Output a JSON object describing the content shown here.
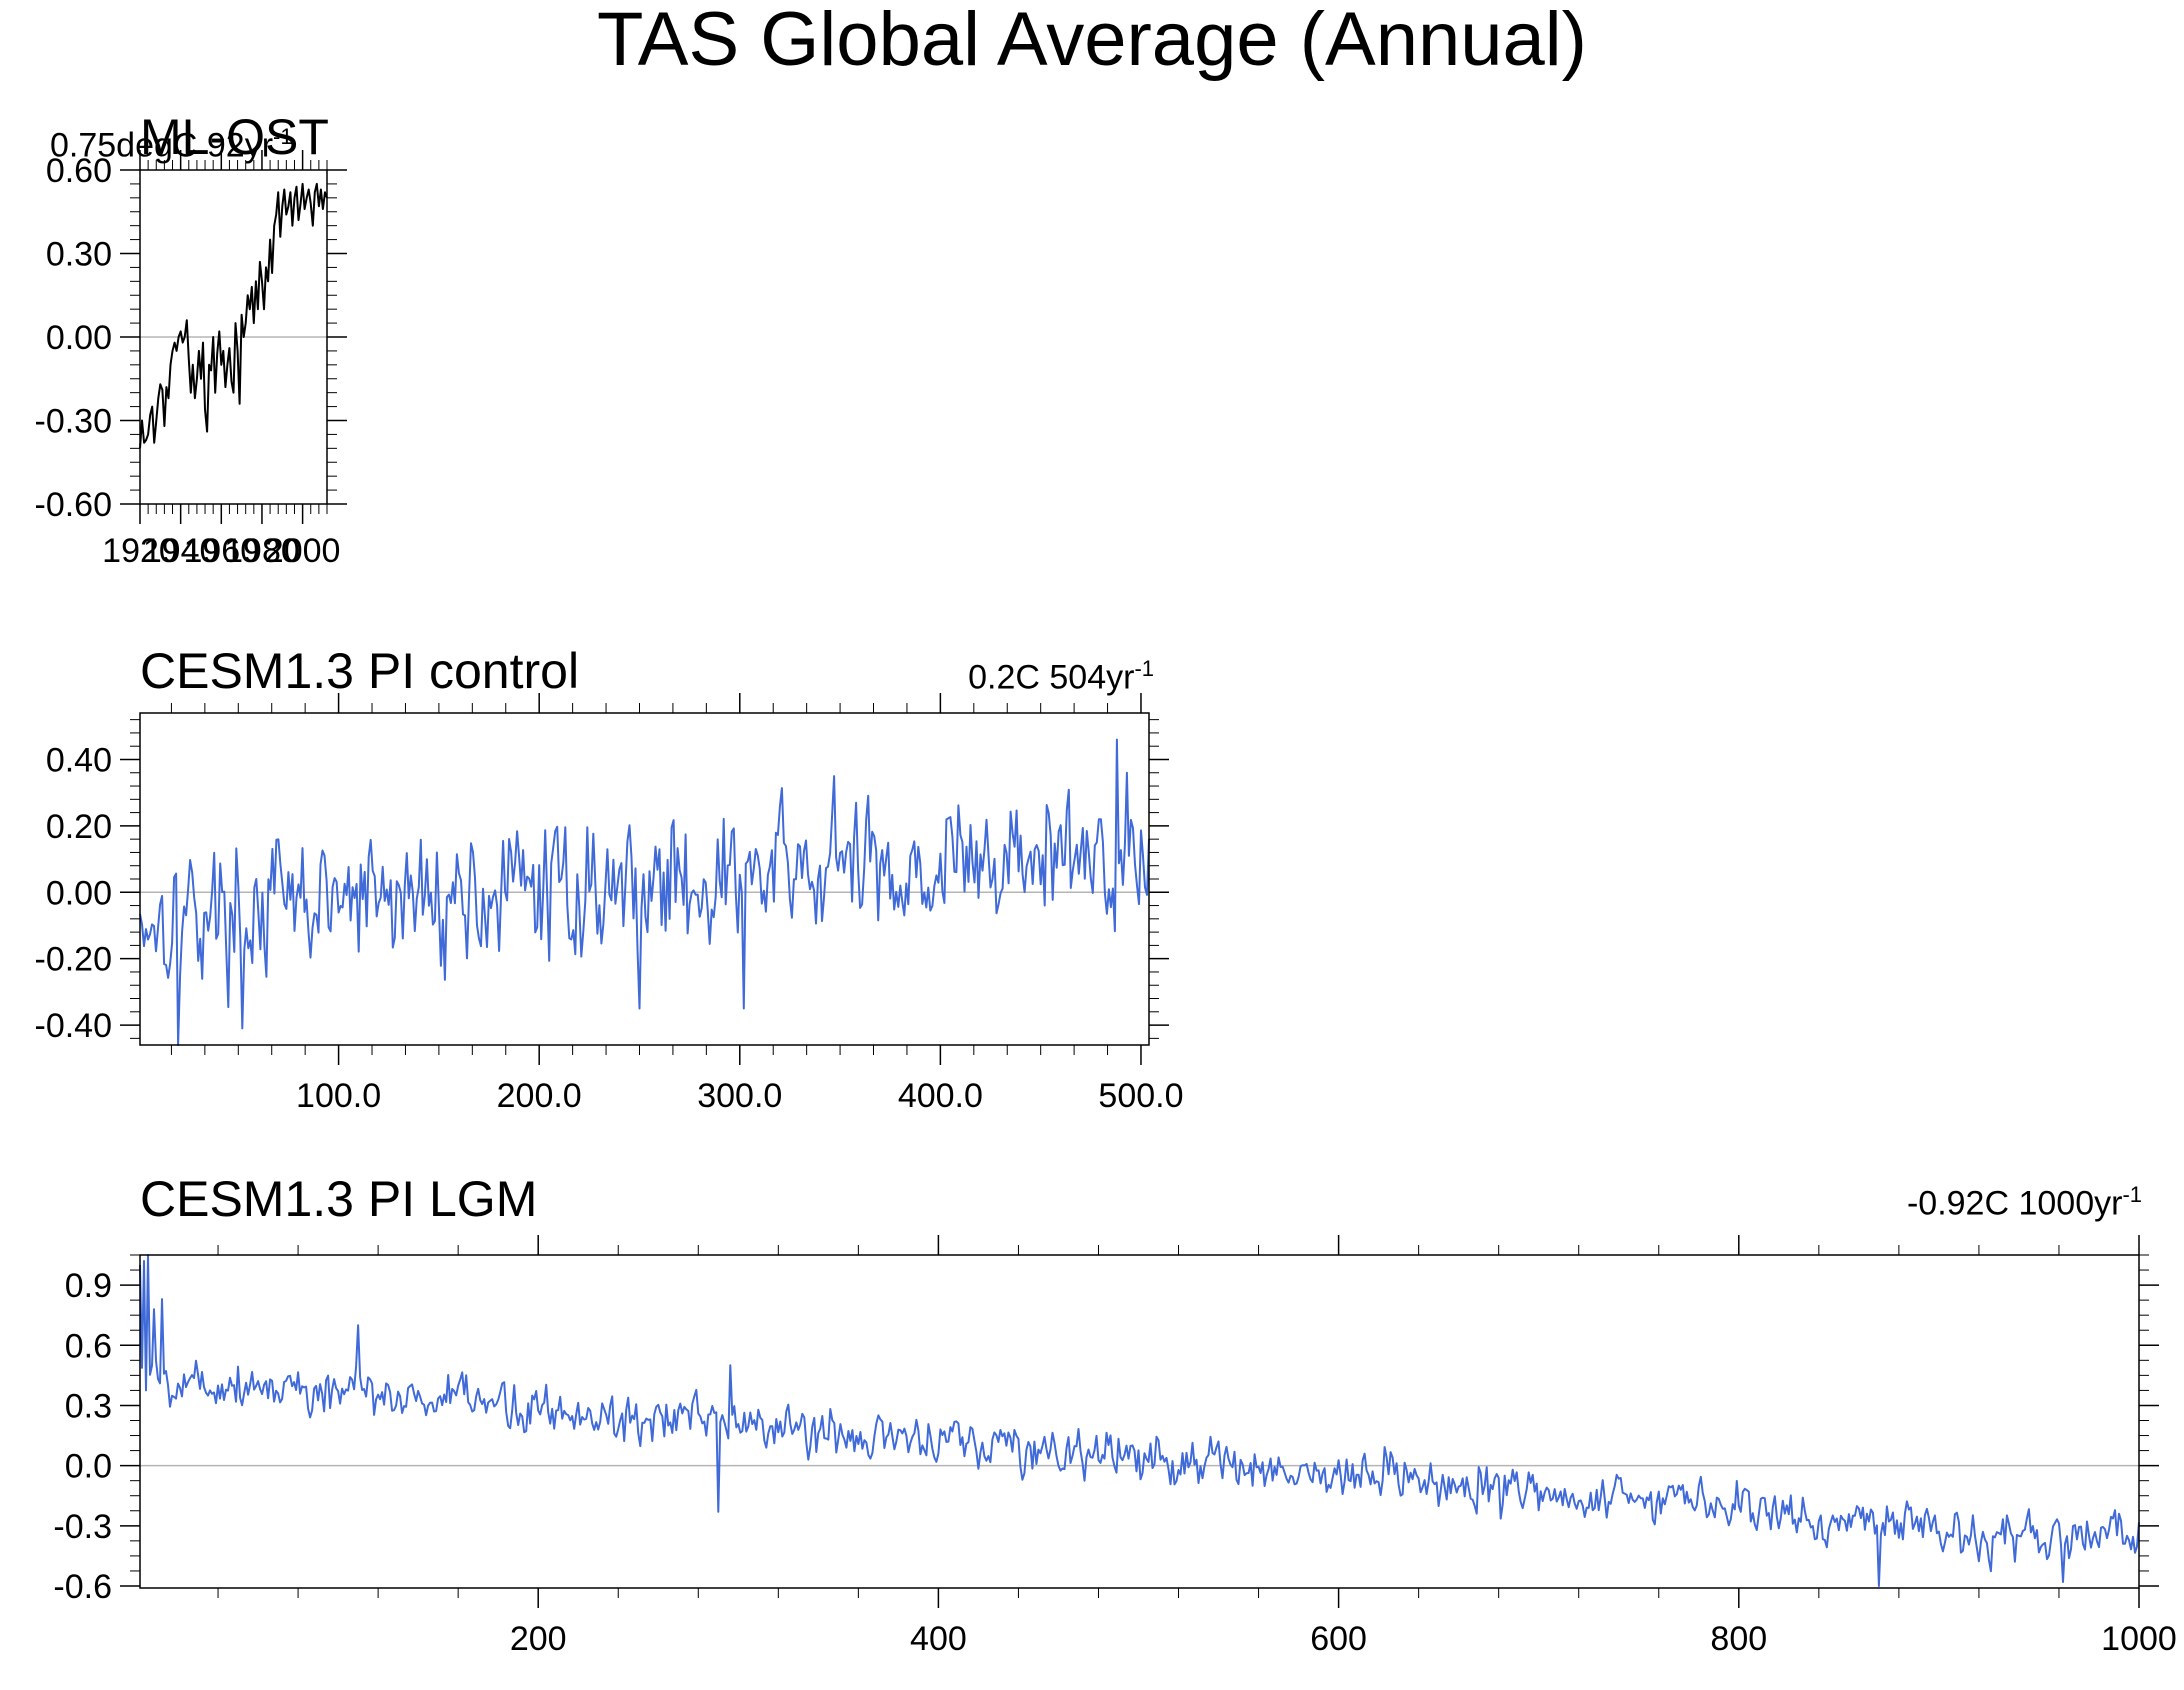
{
  "page": {
    "title": "TAS Global Average (Annual)"
  },
  "chart_data": [
    {
      "type": "line",
      "title": "ML-OST",
      "trend_value": "0.75degC 92yr",
      "trend_exp": "-1",
      "color": "#000000",
      "xlim": [
        1920,
        2012
      ],
      "ylim": [
        -0.6,
        0.6
      ],
      "x_ticks": [
        1920,
        1940,
        1960,
        1980,
        2000
      ],
      "x_tick_labels": [
        "1920",
        "1940",
        "1960",
        "1980",
        "2000"
      ],
      "x_minor": 4,
      "y_ticks": [
        -0.6,
        -0.3,
        0.0,
        0.3,
        0.6
      ],
      "y_tick_labels": [
        "-0.60",
        "-0.30",
        "0.00",
        "0.30",
        "0.60"
      ],
      "y_minor": 5,
      "x_start": 1920,
      "x_step": 1,
      "values": [
        -0.4,
        -0.3,
        -0.38,
        -0.37,
        -0.35,
        -0.28,
        -0.25,
        -0.38,
        -0.3,
        -0.22,
        -0.17,
        -0.19,
        -0.32,
        -0.18,
        -0.22,
        -0.1,
        -0.05,
        -0.02,
        -0.05,
        0.0,
        0.02,
        -0.02,
        0.0,
        0.06,
        -0.08,
        -0.2,
        -0.1,
        -0.22,
        -0.15,
        -0.05,
        -0.15,
        -0.02,
        -0.26,
        -0.34,
        -0.1,
        -0.12,
        0.0,
        -0.2,
        -0.06,
        0.02,
        -0.1,
        -0.05,
        -0.18,
        -0.1,
        -0.04,
        -0.16,
        -0.2,
        0.05,
        -0.05,
        -0.24,
        0.08,
        0.0,
        0.05,
        0.15,
        0.1,
        0.18,
        0.05,
        0.2,
        0.1,
        0.27,
        0.2,
        0.1,
        0.25,
        0.2,
        0.35,
        0.23,
        0.4,
        0.44,
        0.52,
        0.36,
        0.47,
        0.53,
        0.44,
        0.47,
        0.52,
        0.4,
        0.5,
        0.54,
        0.42,
        0.48,
        0.55,
        0.46,
        0.5,
        0.53,
        0.48,
        0.4,
        0.52,
        0.55,
        0.47,
        0.53,
        0.46,
        0.52,
        0.5
      ]
    },
    {
      "type": "line",
      "title": "CESM1.3 PI control",
      "trend_value": "0.2C 504yr",
      "trend_exp": "-1",
      "color": "#3f6ad8",
      "xlim": [
        1,
        504
      ],
      "ylim": [
        -0.46,
        0.54
      ],
      "x_ticks": [
        100,
        200,
        300,
        400,
        500
      ],
      "x_tick_labels": [
        "100.0",
        "200.0",
        "300.0",
        "400.0",
        "500.0"
      ],
      "x_minor": 5,
      "y_ticks": [
        -0.4,
        -0.2,
        0.0,
        0.2,
        0.4
      ],
      "y_tick_labels": [
        "-0.40",
        "-0.20",
        "0.00",
        "0.20",
        "0.40"
      ],
      "y_minor": 4,
      "gen": {
        "n": 504,
        "trend_start": -0.07,
        "trend_end": 0.12,
        "amp": 0.14,
        "seed": 17,
        "peaks": [
          [
            20,
            -0.46
          ],
          [
            52,
            -0.41
          ],
          [
            250,
            -0.35
          ],
          [
            302,
            -0.35
          ],
          [
            347,
            0.35
          ],
          [
            488,
            0.46
          ],
          [
            493,
            0.36
          ]
        ]
      }
    },
    {
      "type": "line",
      "title": "CESM1.3 PI LGM",
      "trend_value": "-0.92C 1000yr",
      "trend_exp": "-1",
      "color": "#3f6ad8",
      "xlim": [
        1,
        1000
      ],
      "ylim": [
        -0.61,
        1.05
      ],
      "x_ticks": [
        200,
        400,
        600,
        800,
        1000
      ],
      "x_tick_labels": [
        "200",
        "400",
        "600",
        "800",
        "1000"
      ],
      "x_minor": 4,
      "y_ticks": [
        -0.6,
        -0.3,
        0.0,
        0.3,
        0.6,
        0.9
      ],
      "y_tick_labels": [
        "-0.6",
        "-0.3",
        "0.0",
        "0.3",
        "0.6",
        "0.9"
      ],
      "y_minor": 3,
      "gen": {
        "n": 1000,
        "trend_start": 0.45,
        "trend_end": -0.38,
        "amp": 0.09,
        "seed": 5,
        "peaks": [
          [
            1,
            1.0
          ],
          [
            3,
            1.02
          ],
          [
            5,
            1.05
          ],
          [
            8,
            0.78
          ],
          [
            12,
            0.83
          ],
          [
            110,
            0.7
          ],
          [
            290,
            -0.23
          ],
          [
            296,
            0.5
          ],
          [
            870,
            -0.6
          ],
          [
            962,
            -0.58
          ]
        ]
      }
    }
  ]
}
